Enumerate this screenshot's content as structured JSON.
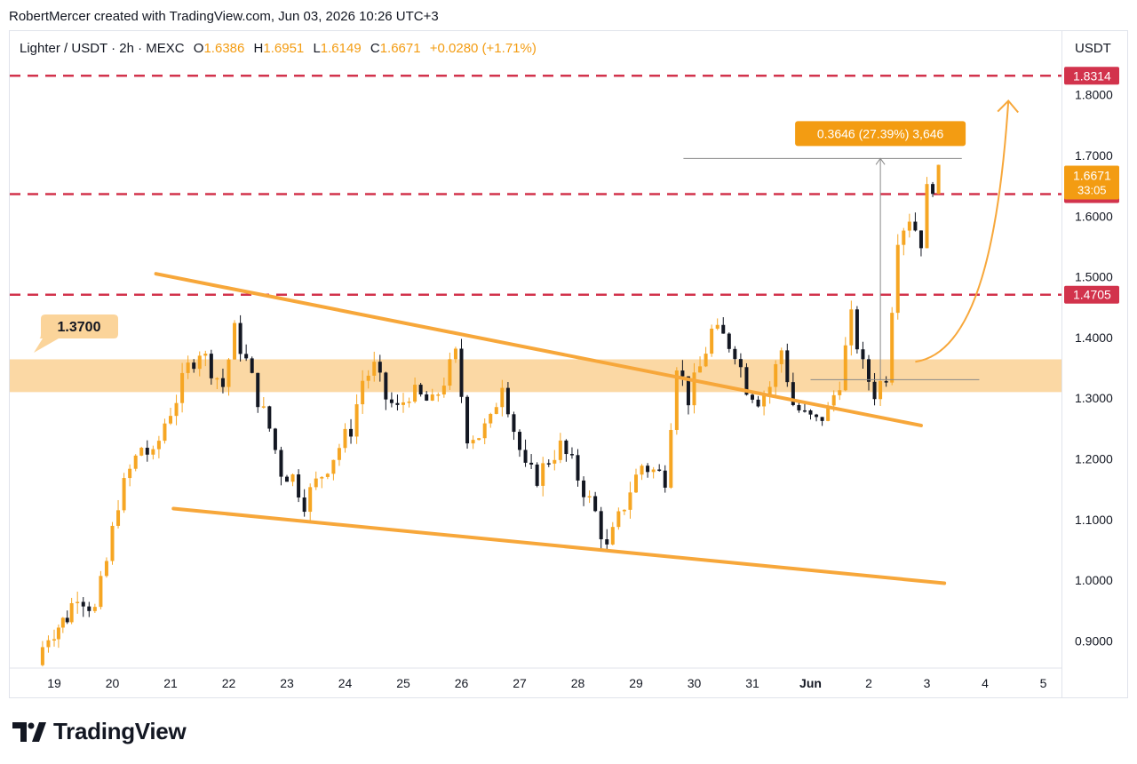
{
  "header": {
    "caption": "RobertMercer created with TradingView.com, Jun 03, 2026 10:26 UTC+3"
  },
  "symbol": {
    "title": "Lighter / USDT · 2h · MEXC",
    "o_label": "O",
    "o_value": "1.6386",
    "h_label": "H",
    "h_value": "1.6951",
    "l_label": "L",
    "l_value": "1.6149",
    "c_label": "C",
    "c_value": "1.6671",
    "change": "+0.0280 (+1.71%)"
  },
  "price_axis": {
    "currency": "USDT",
    "tick_labels": [
      "1.8000",
      "1.7000",
      "1.6000",
      "1.5000",
      "1.4000",
      "1.3000",
      "1.2000",
      "1.1000",
      "1.0000",
      "0.9000"
    ],
    "ticks": [
      1.8,
      1.7,
      1.6,
      1.5,
      1.4,
      1.3,
      1.2,
      1.1,
      1.0,
      0.9
    ],
    "current_price": "1.6671",
    "countdown": "33:05"
  },
  "time_axis": {
    "tick_labels": [
      "19",
      "20",
      "21",
      "22",
      "23",
      "24",
      "25",
      "26",
      "27",
      "28",
      "29",
      "30",
      "31",
      "Jun",
      "2",
      "3",
      "4",
      "5"
    ]
  },
  "annotations": {
    "zone_label": "1.3700",
    "measure_label": "0.3646 (27.39%) 3,646",
    "levels": [
      {
        "value": 1.8314,
        "label": "1.8314"
      },
      {
        "value": 1.6364,
        "label": "1.6364"
      },
      {
        "value": 1.4705,
        "label": "1.4705"
      }
    ],
    "support_zone": [
      1.31,
      1.364
    ]
  },
  "colors": {
    "up": "#f6a623",
    "down": "#131722",
    "trendline": "#f7a73a",
    "zone": "#fbd49a",
    "level": "#d2334c",
    "accent": "#f39c12"
  },
  "chart_data": {
    "type": "candlestick",
    "title": "Lighter / USDT · 2h · MEXC",
    "ylabel": "USDT",
    "ylim": [
      0.85,
      1.87
    ],
    "x_ticks": [
      "19",
      "20",
      "21",
      "22",
      "23",
      "24",
      "25",
      "26",
      "27",
      "28",
      "29",
      "30",
      "31",
      "Jun",
      "2",
      "3",
      "4",
      "5"
    ],
    "support_zone": [
      1.31,
      1.364
    ],
    "horizontal_levels": [
      1.8314,
      1.6364,
      1.4705
    ],
    "trendlines": [
      {
        "from": [
          "20.75",
          1.505
        ],
        "to": [
          "2.9",
          1.255
        ]
      },
      {
        "from": [
          "21.05",
          1.118
        ],
        "to": [
          "3.3",
          0.995
        ]
      }
    ],
    "measure": {
      "from": 1.3305,
      "to": 1.6951,
      "change": 0.3646,
      "percent": 27.39
    },
    "candles_close_track": [
      [
        "18.8",
        0.87
      ],
      [
        "19.0",
        0.91
      ],
      [
        "19.3",
        0.94
      ],
      [
        "19.5",
        0.98
      ],
      [
        "19.6",
        0.97
      ],
      [
        "19.8",
        0.95
      ],
      [
        "20.0",
        1.03
      ],
      [
        "20.2",
        1.13
      ],
      [
        "20.4",
        1.18
      ],
      [
        "20.6",
        1.22
      ],
      [
        "20.8",
        1.2
      ],
      [
        "21.0",
        1.26
      ],
      [
        "21.2",
        1.3
      ],
      [
        "21.4",
        1.35
      ],
      [
        "21.6",
        1.38
      ],
      [
        "21.8",
        1.35
      ],
      [
        "22.0",
        1.32
      ],
      [
        "22.2",
        1.41
      ],
      [
        "22.4",
        1.36
      ],
      [
        "22.6",
        1.3
      ],
      [
        "22.8",
        1.25
      ],
      [
        "23.0",
        1.18
      ],
      [
        "23.2",
        1.17
      ],
      [
        "23.4",
        1.13
      ],
      [
        "23.6",
        1.16
      ],
      [
        "23.8",
        1.19
      ],
      [
        "24.0",
        1.22
      ],
      [
        "24.2",
        1.25
      ],
      [
        "24.4",
        1.33
      ],
      [
        "24.6",
        1.35
      ],
      [
        "24.8",
        1.3
      ],
      [
        "25.0",
        1.28
      ],
      [
        "25.2",
        1.31
      ],
      [
        "25.4",
        1.3
      ],
      [
        "25.6",
        1.29
      ],
      [
        "25.8",
        1.33
      ],
      [
        "26.0",
        1.37
      ],
      [
        "26.2",
        1.24
      ],
      [
        "26.4",
        1.24
      ],
      [
        "26.6",
        1.26
      ],
      [
        "26.8",
        1.33
      ],
      [
        "27.0",
        1.25
      ],
      [
        "27.2",
        1.18
      ],
      [
        "27.4",
        1.17
      ],
      [
        "27.6",
        1.2
      ],
      [
        "27.8",
        1.22
      ],
      [
        "28.0",
        1.19
      ],
      [
        "28.2",
        1.15
      ],
      [
        "28.4",
        1.11
      ],
      [
        "28.6",
        1.05
      ],
      [
        "28.8",
        1.1
      ],
      [
        "29.0",
        1.15
      ],
      [
        "29.2",
        1.19
      ],
      [
        "29.4",
        1.18
      ],
      [
        "29.6",
        1.17
      ],
      [
        "29.8",
        1.36
      ],
      [
        "30.0",
        1.3
      ],
      [
        "30.2",
        1.35
      ],
      [
        "30.4",
        1.41
      ],
      [
        "30.6",
        1.4
      ],
      [
        "30.8",
        1.38
      ],
      [
        "31.0",
        1.32
      ],
      [
        "31.2",
        1.3
      ],
      [
        "31.4",
        1.32
      ],
      [
        "31.6",
        1.38
      ],
      [
        "31.8",
        1.29
      ],
      [
        "Jun",
        1.27
      ],
      [
        "1.2",
        1.26
      ],
      [
        "1.4",
        1.28
      ],
      [
        "1.6",
        1.33
      ],
      [
        "1.8",
        1.43
      ],
      [
        "2.0",
        1.35
      ],
      [
        "2.2",
        1.31
      ],
      [
        "2.4",
        1.34
      ],
      [
        "2.6",
        1.57
      ],
      [
        "2.8",
        1.6
      ],
      [
        "3.0",
        1.56
      ],
      [
        "3.1",
        1.64
      ],
      [
        "3.3",
        1.6671
      ]
    ]
  }
}
